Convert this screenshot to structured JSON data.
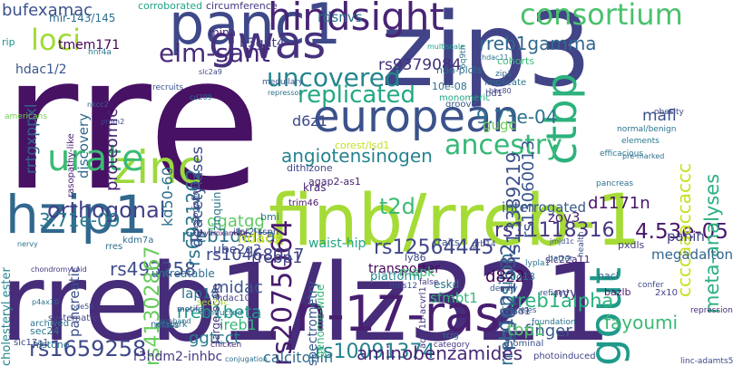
{
  "words": [
    {
      "text": "rre",
      "color": "#471164"
    },
    {
      "text": "rreb1/lz321",
      "color": "#472c7a"
    },
    {
      "text": "zip3",
      "color": "#414487"
    },
    {
      "text": "finb/rreb-1",
      "color": "#a5db36"
    },
    {
      "text": "european",
      "color": "#3b528b"
    },
    {
      "text": "hzip1",
      "color": "#31688e"
    },
    {
      "text": "panc1",
      "color": "#3e4989"
    },
    {
      "text": "n-17-ras",
      "color": "#481f70"
    },
    {
      "text": "zinc",
      "color": "#9bd93c"
    },
    {
      "text": "hindsight",
      "color": "#482475"
    },
    {
      "text": "gwas",
      "color": "#46327e"
    },
    {
      "text": "gout",
      "color": "#1f9a8a"
    },
    {
      "text": "ctbp",
      "color": "#2db27d"
    },
    {
      "text": "urate",
      "color": "#3bbb75"
    },
    {
      "text": "ancestry",
      "color": "#37b878"
    },
    {
      "text": "consortium",
      "color": "#4ac16d"
    },
    {
      "text": "loci",
      "color": "#a2da37"
    },
    {
      "text": "elm-sant",
      "color": "#472a7a"
    },
    {
      "text": "uncovered",
      "color": "#24868e"
    },
    {
      "text": "replicated",
      "color": "#22a884"
    },
    {
      "text": "orthogonal",
      "color": "#424086"
    },
    {
      "text": "rs1659258",
      "color": "#3f4889"
    },
    {
      "text": "rs10091374",
      "color": "#26828e"
    },
    {
      "text": "rreb1beta",
      "color": "#1f9a8a"
    },
    {
      "text": "rreb1alpha",
      "color": "#2db27d"
    },
    {
      "text": "rreb1delta",
      "color": "#2c728e"
    },
    {
      "text": "rreb1epsilon",
      "color": "#2e6f8e"
    },
    {
      "text": "rreb1gamma",
      "color": "#31688e"
    },
    {
      "text": "rs2075064",
      "color": "#481b6d"
    },
    {
      "text": "rs12564445",
      "color": "#404688"
    },
    {
      "text": "rs9621532",
      "color": "#3a548c"
    },
    {
      "text": "rs11118316",
      "color": "#453882"
    },
    {
      "text": "rs10468017",
      "color": "#3f4788"
    },
    {
      "text": "rs493258",
      "color": "#3e4c8a"
    },
    {
      "text": "rs41302867",
      "color": "#67cc5c"
    },
    {
      "text": "rs6931262",
      "color": "#2c738e"
    },
    {
      "text": "rs13389219",
      "color": "#3c508b"
    },
    {
      "text": "rs13060013",
      "color": "#39568c"
    },
    {
      "text": "rs9379084",
      "color": "#46307e"
    },
    {
      "text": "4.53e-05",
      "color": "#481769"
    },
    {
      "text": "3.71e-09",
      "color": "#2a788e"
    },
    {
      "text": "9.73e-04",
      "color": "#2c738e"
    },
    {
      "text": "angiotensinogen",
      "color": "#26828e"
    },
    {
      "text": "ccccaaaccaccc",
      "color": "#c8e020"
    },
    {
      "text": "meta-analyses",
      "color": "#2ab07f"
    },
    {
      "text": "aminobenzamides",
      "color": "#482878"
    },
    {
      "text": "fayoumi",
      "color": "#3aba76"
    },
    {
      "text": "finger",
      "color": "#38588c"
    },
    {
      "text": "tbp1",
      "color": "#52c569"
    },
    {
      "text": "sfmbt1",
      "color": "#35b779"
    },
    {
      "text": "eskd",
      "color": "#2c738e"
    },
    {
      "text": "d8z2",
      "color": "#440154"
    },
    {
      "text": "nvy",
      "color": "#472d7b"
    },
    {
      "text": "megadalton",
      "color": "#32658e"
    },
    {
      "text": "panin",
      "color": "#404588"
    },
    {
      "text": "mafl",
      "color": "#3b518b"
    },
    {
      "text": "t2d",
      "color": "#3bbb75"
    },
    {
      "text": "d1171n",
      "color": "#481467"
    },
    {
      "text": "zov3",
      "color": "#482475"
    },
    {
      "text": "interrogated",
      "color": "#38588c"
    },
    {
      "text": "gugc",
      "color": "#6ece58"
    },
    {
      "text": "hdacs",
      "color": "#d5e21a"
    },
    {
      "text": "ggatgg",
      "color": "#5ec962"
    },
    {
      "text": "deacetylases",
      "color": "#3e4a89"
    },
    {
      "text": "rrebp1",
      "color": "#433e85"
    },
    {
      "text": "midac",
      "color": "#3b528b"
    },
    {
      "text": "lap18",
      "color": "#2d708e"
    },
    {
      "text": "ggtcct",
      "color": "#297b8e"
    },
    {
      "text": "ireb1",
      "color": "#35b779"
    },
    {
      "text": "calcitonin",
      "color": "#2e6e8e"
    },
    {
      "text": "r3hdm2-inhbc",
      "color": "#443983"
    },
    {
      "text": "cholesteryl ester",
      "color": "#25858e"
    },
    {
      "text": "pancreatic",
      "color": "#3c4f8a"
    },
    {
      "text": "discovery",
      "color": "#31688e"
    },
    {
      "text": "proteomic",
      "color": "#482173"
    },
    {
      "text": "tmem171",
      "color": "#450559"
    },
    {
      "text": "hdac1/2",
      "color": "#39568c"
    },
    {
      "text": "bufexamac",
      "color": "#3b528b"
    },
    {
      "text": "rrtgxppxl",
      "color": "#32648e"
    },
    {
      "text": "kd50-60",
      "color": "#2d708e"
    },
    {
      "text": "d6z1",
      "color": "#3e4989"
    },
    {
      "text": "dithizone",
      "color": "#3f4788"
    },
    {
      "text": "waist-hip",
      "color": "#21a685"
    },
    {
      "text": "platform",
      "color": "#24868e"
    },
    {
      "text": "transporter",
      "color": "#46085c"
    },
    {
      "text": "b3gnt4",
      "color": "#453882"
    },
    {
      "text": "rdsnvs",
      "color": "#2c738e"
    },
    {
      "text": "ube2q2",
      "color": "#3e4a89"
    },
    {
      "text": "spectrometry",
      "color": "#38598c"
    },
    {
      "text": "genome-wide",
      "color": "#37b878"
    },
    {
      "text": "large-scale",
      "color": "#453781"
    },
    {
      "text": "untreatable",
      "color": "#2e6e8e"
    },
    {
      "text": "corest/lsd1",
      "color": "#c5e021"
    },
    {
      "text": "ly86",
      "color": "#3e4a89"
    },
    {
      "text": "traits",
      "color": "#3a548c"
    },
    {
      "text": "trim46",
      "color": "#481668"
    },
    {
      "text": "agap2-as1",
      "color": "#482475"
    },
    {
      "text": "acvr1b-acvrl1",
      "color": "#443a83"
    },
    {
      "text": "mapk",
      "color": "#3dbc74"
    },
    {
      "text": "kras",
      "color": "#482878"
    },
    {
      "text": "zinquin",
      "color": "#2a788e"
    },
    {
      "text": "mina",
      "color": "#482777"
    },
    {
      "text": "mir-143/145",
      "color": "#2e6f8e"
    },
    {
      "text": "rasopathy-like",
      "color": "#481c6e"
    },
    {
      "text": "associations",
      "color": "#3f4788"
    },
    {
      "text": "itpr2-sspn",
      "color": "#404588"
    },
    {
      "text": "histone",
      "color": "#2d708e"
    },
    {
      "text": "sec24",
      "color": "#2a788e"
    },
    {
      "text": "sec24c",
      "color": "#a5db36"
    },
    {
      "text": "hdac10",
      "color": "#433d84"
    },
    {
      "text": "bmi",
      "color": "#2c728e"
    },
    {
      "text": "dad1",
      "color": "#3f4889"
    },
    {
      "text": "8q13",
      "color": "#2c728e"
    },
    {
      "text": "slc22a11",
      "color": "#482979"
    },
    {
      "text": "nacl",
      "color": "#32648e"
    },
    {
      "text": "bazlb",
      "color": "#481769"
    },
    {
      "text": "2x10",
      "color": "#404588"
    },
    {
      "text": "pxdls",
      "color": "#433e85"
    },
    {
      "text": "implicate",
      "color": "#2c728e"
    },
    {
      "text": "hd1",
      "color": "#414487"
    },
    {
      "text": "cohorts",
      "color": "#3bbb75"
    },
    {
      "text": "non-pldls",
      "color": "#2d708e"
    },
    {
      "text": "10e-08",
      "color": "#2c728e"
    },
    {
      "text": "monomeric",
      "color": "#22a884"
    },
    {
      "text": "groove",
      "color": "#38598c"
    },
    {
      "text": "multiscale",
      "color": "#1f9e89"
    },
    {
      "text": "corroborated",
      "color": "#20a386"
    },
    {
      "text": "circumference",
      "color": "#453781"
    },
    {
      "text": "rip",
      "color": "#21908d"
    },
    {
      "text": "americans",
      "color": "#75d054"
    },
    {
      "text": "rres",
      "color": "#2e6e8e"
    },
    {
      "text": "archived",
      "color": "#2a788e"
    },
    {
      "text": "systematic",
      "color": "#3f4788"
    },
    {
      "text": "mass",
      "color": "#32648e"
    },
    {
      "text": "motifs",
      "color": "#3e4c8a"
    },
    {
      "text": "network",
      "color": "#2c738e"
    },
    {
      "text": "conducted",
      "color": "#2a788e"
    },
    {
      "text": "chicken",
      "color": "#482878"
    },
    {
      "text": "conjugation",
      "color": "#2e6e8e"
    },
    {
      "text": "category",
      "color": "#453781"
    },
    {
      "text": "tcrg",
      "color": "#2c728e"
    },
    {
      "text": "nominal",
      "color": "#3b528b"
    },
    {
      "text": "foundation",
      "color": "#2c728e"
    },
    {
      "text": "photoinduced",
      "color": "#404588"
    },
    {
      "text": "repression",
      "color": "#472c7a"
    },
    {
      "text": "linc-adamts5",
      "color": "#3e4989"
    },
    {
      "text": "refined",
      "color": "#39568c"
    },
    {
      "text": "hmtases",
      "color": "#38588c"
    },
    {
      "text": "thns12",
      "color": "#3c4f8a"
    },
    {
      "text": "deadly",
      "color": "#3b528b"
    },
    {
      "text": "confer",
      "color": "#3e4a89"
    },
    {
      "text": "grb14",
      "color": "#3e4989"
    },
    {
      "text": "false",
      "color": "#453882"
    },
    {
      "text": "batter",
      "color": "#31688e"
    },
    {
      "text": "lypla1",
      "color": "#2c728e"
    },
    {
      "text": "health",
      "color": "#3b528b"
    },
    {
      "text": "jmjd1c",
      "color": "#3e4a89"
    },
    {
      "text": "pancreas",
      "color": "#2c728e"
    },
    {
      "text": "efficacious",
      "color": "#2a788e"
    },
    {
      "text": "obesity",
      "color": "#3e4989"
    },
    {
      "text": "normal/benign",
      "color": "#2c728e"
    },
    {
      "text": "elements",
      "color": "#2a788e"
    },
    {
      "text": "pre-marked",
      "color": "#2e6e8e"
    },
    {
      "text": "chondromyxoid",
      "color": "#453781"
    },
    {
      "text": "hydroxamate",
      "color": "#481f70"
    },
    {
      "text": "subband",
      "color": "#2c728e"
    },
    {
      "text": "slc17a1",
      "color": "#3e4989"
    },
    {
      "text": "pde5b",
      "color": "#3b528b"
    },
    {
      "text": "p4ax10",
      "color": "#2c728e"
    },
    {
      "text": "kdm7a",
      "color": "#2e6f8e"
    },
    {
      "text": "hnf4a",
      "color": "#2a788e"
    },
    {
      "text": "recruits",
      "color": "#3b528b"
    },
    {
      "text": "nkcc2",
      "color": "#32648e"
    },
    {
      "text": "prdm2",
      "color": "#3e4989"
    },
    {
      "text": "nervy",
      "color": "#2c728e"
    },
    {
      "text": "cd209",
      "color": "#2c728e"
    },
    {
      "text": "slc2a9",
      "color": "#3e4989"
    },
    {
      "text": "medullary",
      "color": "#39568c"
    },
    {
      "text": "repressor",
      "color": "#2c728e"
    },
    {
      "text": "zip1",
      "color": "#31688e"
    },
    {
      "text": "bhc80",
      "color": "#404588"
    },
    {
      "text": "hdac11",
      "color": "#2a788e"
    },
    {
      "text": "stc1",
      "color": "#3e4989"
    },
    {
      "text": "6q9th",
      "color": "#2e6e8e"
    }
  ]
}
